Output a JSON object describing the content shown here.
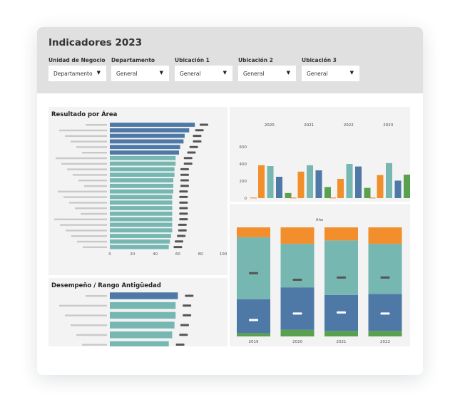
{
  "dashboard": {
    "title": "Indicadores 2023",
    "filters": [
      {
        "label": "Unidad de Negocio",
        "value": "Departamento"
      },
      {
        "label": "Departamento",
        "value": "General"
      },
      {
        "label": "Ubicación 1",
        "value": "General"
      },
      {
        "label": "Ubicación 2",
        "value": "General"
      },
      {
        "label": "Ubicación 3",
        "value": "General"
      }
    ],
    "dropdown_icon": "triangle-down-icon",
    "colors": {
      "blue": "#4e79a7",
      "teal": "#76b7b2",
      "orange": "#f28e2b",
      "green": "#59a14f",
      "placeholder_label": "#c9c9c9",
      "reference_mark": "#555555"
    }
  },
  "chart_data": [
    {
      "id": "resultado-area",
      "type": "bar",
      "orientation": "horizontal",
      "title": "Resultado por Área",
      "categories_redacted": true,
      "values": [
        75,
        70,
        66,
        65,
        62,
        61,
        58,
        58,
        57,
        57,
        56,
        56,
        56,
        55,
        55,
        55,
        55,
        55,
        55,
        55,
        54,
        53,
        52
      ],
      "reference_marks": [
        83,
        79,
        77,
        77,
        74,
        72,
        69,
        69,
        66,
        66,
        66,
        66,
        65,
        65,
        65,
        65,
        65,
        65,
        64,
        64,
        63,
        61,
        60
      ],
      "bar_colors": [
        "blue",
        "blue",
        "blue",
        "blue",
        "blue",
        "blue",
        "teal",
        "teal",
        "teal",
        "teal",
        "teal",
        "teal",
        "teal",
        "teal",
        "teal",
        "teal",
        "teal",
        "teal",
        "teal",
        "teal",
        "teal",
        "teal",
        "teal"
      ],
      "xticks": [
        "0",
        "20",
        "40",
        "60",
        "80",
        "100"
      ],
      "xlim": [
        0,
        100
      ]
    },
    {
      "id": "desempeno-antiguedad",
      "type": "bar",
      "orientation": "horizontal",
      "title": "Desempeño /  Rango Antigüedad",
      "categories_redacted": true,
      "values": [
        60,
        58,
        58,
        57,
        55,
        52
      ],
      "reference_marks": [
        70,
        68,
        68,
        66,
        65,
        62
      ],
      "bar_colors": [
        "blue",
        "teal",
        "teal",
        "teal",
        "teal",
        "teal"
      ],
      "xlim": [
        0,
        100
      ]
    },
    {
      "id": "anual-grupos",
      "type": "bar",
      "column_headers": [
        "2020",
        "2021",
        "2022",
        "2023"
      ],
      "yticks": [
        "0",
        "200",
        "400",
        "600"
      ],
      "ylim": [
        0,
        650
      ],
      "series": [
        {
          "color": "orange",
          "values": [
            385,
            310,
            225,
            270
          ]
        },
        {
          "color": "teal",
          "values": [
            375,
            385,
            400,
            410
          ]
        },
        {
          "color": "blue",
          "values": [
            250,
            325,
            370,
            205
          ]
        },
        {
          "color": "green",
          "values": [
            60,
            130,
            120,
            275
          ]
        }
      ]
    },
    {
      "id": "composicion-anual",
      "type": "bar",
      "stacked": true,
      "title": "Año",
      "categories": [
        "2019",
        "2020",
        "2021",
        "2022"
      ],
      "series": [
        {
          "color": "green",
          "values": [
            3,
            6,
            5,
            5
          ]
        },
        {
          "color": "blue",
          "values": [
            31,
            39,
            33,
            34
          ]
        },
        {
          "color": "teal",
          "values": [
            57,
            40,
            50,
            46
          ]
        },
        {
          "color": "orange",
          "values": [
            9,
            15,
            12,
            15
          ]
        }
      ],
      "markers": [
        58,
        52,
        54,
        54
      ],
      "markers_2": [
        15,
        21,
        22,
        21
      ],
      "ylim": [
        0,
        100
      ]
    }
  ]
}
